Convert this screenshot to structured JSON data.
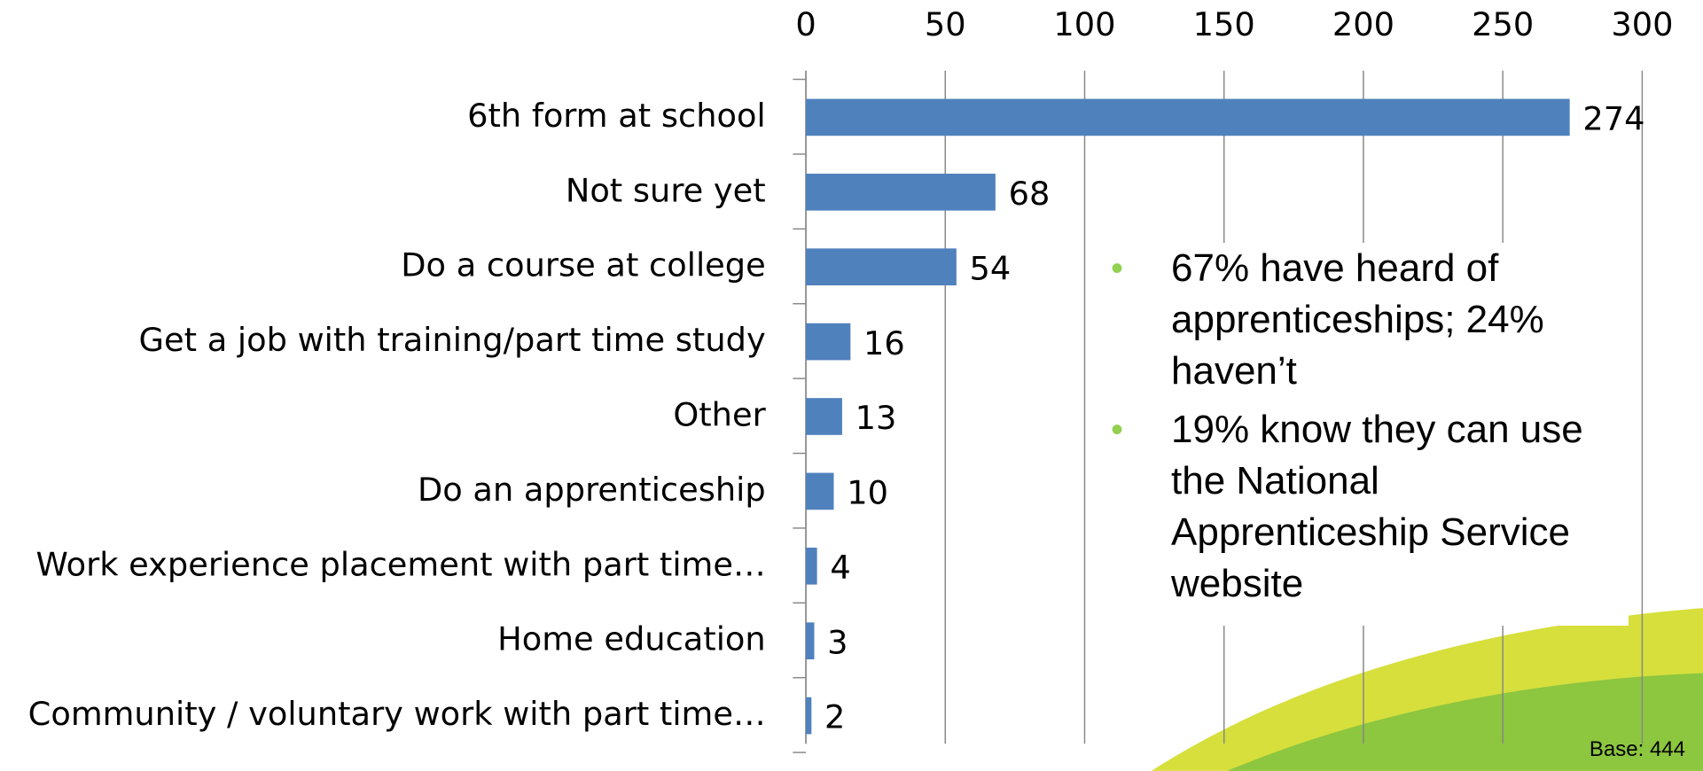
{
  "chart_data": {
    "type": "bar",
    "orientation": "horizontal",
    "categories": [
      "6th form at school",
      "Not sure yet",
      "Do a course at college",
      "Get a job with training/part time study",
      "Other",
      "Do an apprenticeship",
      "Work experience placement with part time…",
      "Home education",
      "Community / voluntary work with part time…"
    ],
    "values": [
      274,
      68,
      54,
      16,
      13,
      10,
      4,
      3,
      2
    ],
    "color": "#4f81bd",
    "xlim": [
      0,
      300
    ],
    "xticks": [
      0,
      50,
      100,
      150,
      200,
      250,
      300
    ],
    "grid": true,
    "annotations": [
      "67% have heard of apprenticeships; 24% haven’t",
      "19% know they can use the National Apprenticeship Service website"
    ],
    "note": "Base: 444"
  }
}
